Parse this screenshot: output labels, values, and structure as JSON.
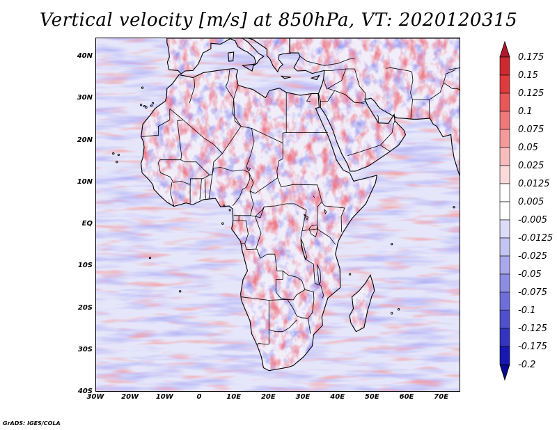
{
  "title": "Vertical velocity [m/s] at 850hPa, VT: 2020120315",
  "credit": "GrADS: IGES/COLA",
  "axes": {
    "latitude_labels": [
      "40N",
      "30N",
      "20N",
      "10N",
      "EQ",
      "10S",
      "20S",
      "30S",
      "40S"
    ],
    "latitude_values": [
      40,
      30,
      20,
      10,
      0,
      -10,
      -20,
      -30,
      -40
    ],
    "longitude_labels": [
      "30W",
      "20W",
      "10W",
      "0",
      "10E",
      "20E",
      "30E",
      "40E",
      "50E",
      "60E",
      "70E"
    ],
    "longitude_values": [
      -30,
      -20,
      -10,
      0,
      10,
      20,
      30,
      40,
      50,
      60,
      70
    ],
    "lat_range": [
      -40,
      44.5
    ],
    "lon_range": [
      -30,
      75.5
    ]
  },
  "colorbar": {
    "labels": [
      "0.175",
      "0.15",
      "0.125",
      "0.1",
      "0.075",
      "0.05",
      "0.025",
      "0.0125",
      "0.005",
      "-0.005",
      "-0.0125",
      "-0.025",
      "-0.05",
      "-0.075",
      "-0.1",
      "-0.125",
      "-0.175",
      "-0.2"
    ],
    "colors": [
      "#b2182b",
      "#cc2a2f",
      "#dc3c3c",
      "#e85858",
      "#ef7878",
      "#f49a9a",
      "#f8bcbc",
      "#fbdada",
      "#ffffff",
      "#ffffff",
      "#dcdcf8",
      "#c4c4f2",
      "#a8a8ea",
      "#8c8ce2",
      "#6e6ed8",
      "#5050cc",
      "#3434c0",
      "#1818b0",
      "#0a0a90"
    ]
  }
}
